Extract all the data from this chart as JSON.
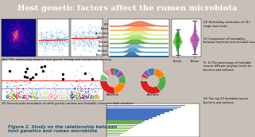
{
  "title": "Host genetic factors affect the rumen microbiota",
  "title_bg": "#8B0000",
  "title_color": "#FFFFFF",
  "fig_bg": "#C8C0B8",
  "fig_label_color": "#1a5276",
  "left_caption_ac": "(A-C) The relationship between host genetic kinship and microbiome similarity",
  "left_caption_d": "(D) Genome-wide association of cattle genetic variants and heritable rumen microbial variations",
  "fig_caption": "Figure 2. Study on the relationship between\nhost genetics and rumen microbiota",
  "right_labels": [
    "(D) Heritability estimation of 317\nsingle taxa traits",
    "(E) Comparison of heritability\nbetween bacterial and archaeal taxa",
    "(F, G) The percentage of heritable\ntaxa at different phylum levels for\nbacteria and archaea.",
    "(H) The top 20 heritable taxa in\nbacteria and archaea."
  ],
  "ridge_colors": [
    "#2166ac",
    "#4393c3",
    "#74add1",
    "#4dac26",
    "#a6d96a",
    "#d9ef8b",
    "#fdae61",
    "#f46d43"
  ],
  "donut_colors_left": [
    "#e41a1c",
    "#ff7f00",
    "#4daf4a",
    "#984ea3",
    "#377eb8",
    "#a65628",
    "#f781bf",
    "#999999",
    "#ffff33",
    "#66c2a5"
  ],
  "donut_colors_right": [
    "#e41a1c",
    "#4daf4a",
    "#ff7f00",
    "#377eb8",
    "#984ea3",
    "#a65628",
    "#f781bf",
    "#66c2a5",
    "#ffff33"
  ],
  "bar_colors": [
    "#4472c4",
    "#4472c4",
    "#4472c4",
    "#4472c4",
    "#4472c4",
    "#4472c4",
    "#4472c4",
    "#4472c4",
    "#4472c4",
    "#4472c4",
    "#70ad47",
    "#70ad47",
    "#70ad47",
    "#70ad47",
    "#70ad47",
    "#70ad47",
    "#70ad47",
    "#70ad47",
    "#70ad47",
    "#70ad47"
  ]
}
